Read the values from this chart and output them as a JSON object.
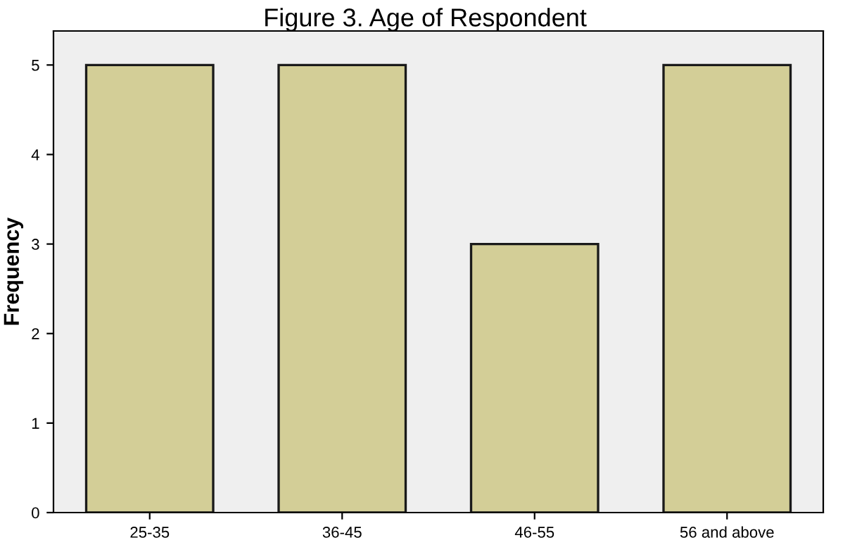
{
  "chart_data": {
    "type": "bar",
    "title": "Figure 3. Age of Respondent",
    "ylabel": "Frequency",
    "categories": [
      "25-35",
      "36-45",
      "46-55",
      "56 and above"
    ],
    "values": [
      5,
      5,
      3,
      5
    ],
    "color": "#d3ce97",
    "ylim": [
      0,
      5.38
    ],
    "yticks": [
      0,
      1,
      2,
      3,
      4,
      5
    ],
    "grid": false
  }
}
